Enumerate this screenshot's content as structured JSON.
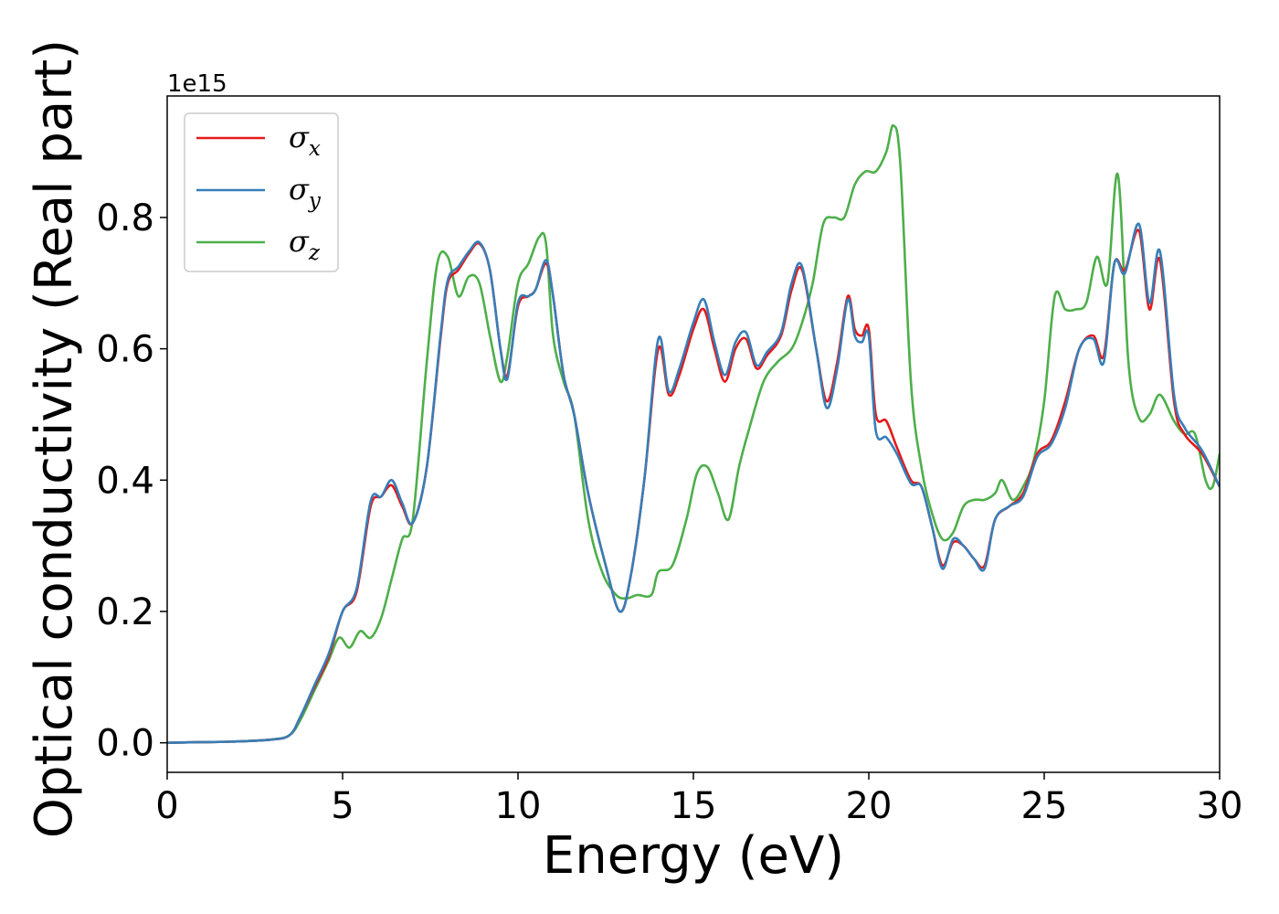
{
  "chart_data": {
    "type": "line",
    "xlabel": "Energy (eV)",
    "ylabel": "Optical conductivity (Real part)",
    "y_offset_text": "1e15",
    "xlim": [
      0,
      30
    ],
    "ylim": [
      -0.045,
      0.985
    ],
    "xticks": [
      0,
      5,
      10,
      15,
      20,
      25,
      30
    ],
    "xtick_labels": [
      "0",
      "5",
      "10",
      "15",
      "20",
      "25",
      "30"
    ],
    "yticks": [
      0.0,
      0.2,
      0.4,
      0.6,
      0.8
    ],
    "ytick_labels": [
      "0.0",
      "0.2",
      "0.4",
      "0.6",
      "0.8"
    ],
    "grid": false,
    "legend_position": "top-left",
    "series": [
      {
        "name": "σx",
        "symbol": "σ",
        "subscript": "x",
        "color": "#e41a1c",
        "x": [
          0,
          1,
          2,
          3,
          3.5,
          3.8,
          4.2,
          4.6,
          5.0,
          5.4,
          5.8,
          6.1,
          6.4,
          6.7,
          7.0,
          7.4,
          7.8,
          8.0,
          8.3,
          8.6,
          8.9,
          9.2,
          9.5,
          9.7,
          10.0,
          10.3,
          10.5,
          10.8,
          11.0,
          11.3,
          11.6,
          12.0,
          12.5,
          12.9,
          13.2,
          13.6,
          14.0,
          14.3,
          14.6,
          15.0,
          15.3,
          15.6,
          15.9,
          16.2,
          16.5,
          16.8,
          17.1,
          17.5,
          17.8,
          18.1,
          18.5,
          18.8,
          19.1,
          19.4,
          19.6,
          19.8,
          20.0,
          20.2,
          20.5,
          20.8,
          21.2,
          21.5,
          21.8,
          22.1,
          22.4,
          22.7,
          23.0,
          23.3,
          23.6,
          24.0,
          24.4,
          24.8,
          25.2,
          25.6,
          26.0,
          26.4,
          26.7,
          27.0,
          27.3,
          27.7,
          28.0,
          28.3,
          28.7,
          29.0,
          29.5,
          30.0
        ],
        "values": [
          0,
          0.001,
          0.002,
          0.005,
          0.012,
          0.04,
          0.085,
          0.13,
          0.2,
          0.23,
          0.36,
          0.375,
          0.392,
          0.36,
          0.335,
          0.42,
          0.62,
          0.7,
          0.72,
          0.745,
          0.76,
          0.72,
          0.6,
          0.56,
          0.665,
          0.68,
          0.69,
          0.73,
          0.68,
          0.56,
          0.5,
          0.38,
          0.27,
          0.2,
          0.25,
          0.4,
          0.6,
          0.53,
          0.56,
          0.63,
          0.66,
          0.6,
          0.55,
          0.6,
          0.615,
          0.57,
          0.59,
          0.62,
          0.69,
          0.72,
          0.6,
          0.52,
          0.58,
          0.68,
          0.63,
          0.62,
          0.63,
          0.5,
          0.49,
          0.45,
          0.4,
          0.39,
          0.33,
          0.27,
          0.305,
          0.3,
          0.28,
          0.27,
          0.34,
          0.36,
          0.38,
          0.44,
          0.46,
          0.52,
          0.6,
          0.62,
          0.59,
          0.73,
          0.72,
          0.78,
          0.66,
          0.735,
          0.52,
          0.47,
          0.44,
          0.39
        ]
      },
      {
        "name": "σy",
        "symbol": "σ",
        "subscript": "y",
        "color": "#377eb8",
        "x": [
          0,
          1,
          2,
          3,
          3.5,
          3.8,
          4.2,
          4.6,
          5.0,
          5.4,
          5.8,
          6.1,
          6.4,
          6.7,
          7.0,
          7.4,
          7.8,
          8.0,
          8.3,
          8.6,
          8.9,
          9.2,
          9.5,
          9.7,
          10.0,
          10.3,
          10.5,
          10.8,
          11.0,
          11.3,
          11.6,
          12.0,
          12.5,
          12.9,
          13.2,
          13.6,
          14.0,
          14.3,
          14.6,
          15.0,
          15.3,
          15.6,
          15.9,
          16.2,
          16.5,
          16.8,
          17.1,
          17.5,
          17.8,
          18.1,
          18.5,
          18.8,
          19.1,
          19.4,
          19.6,
          19.8,
          20.0,
          20.2,
          20.5,
          20.8,
          21.2,
          21.5,
          21.8,
          22.1,
          22.4,
          22.7,
          23.0,
          23.3,
          23.6,
          24.0,
          24.4,
          24.8,
          25.2,
          25.6,
          26.0,
          26.4,
          26.7,
          27.0,
          27.3,
          27.7,
          28.0,
          28.3,
          28.7,
          29.0,
          29.5,
          30.0
        ],
        "values": [
          0,
          0.001,
          0.002,
          0.005,
          0.012,
          0.04,
          0.088,
          0.135,
          0.2,
          0.235,
          0.368,
          0.375,
          0.4,
          0.365,
          0.335,
          0.42,
          0.625,
          0.705,
          0.725,
          0.748,
          0.762,
          0.72,
          0.6,
          0.555,
          0.67,
          0.68,
          0.69,
          0.735,
          0.68,
          0.56,
          0.5,
          0.38,
          0.27,
          0.2,
          0.25,
          0.4,
          0.615,
          0.535,
          0.57,
          0.64,
          0.675,
          0.61,
          0.56,
          0.61,
          0.625,
          0.575,
          0.595,
          0.625,
          0.7,
          0.725,
          0.6,
          0.51,
          0.57,
          0.675,
          0.62,
          0.61,
          0.62,
          0.475,
          0.465,
          0.44,
          0.395,
          0.39,
          0.33,
          0.265,
          0.31,
          0.3,
          0.28,
          0.265,
          0.34,
          0.36,
          0.375,
          0.435,
          0.455,
          0.51,
          0.6,
          0.615,
          0.58,
          0.73,
          0.715,
          0.79,
          0.67,
          0.748,
          0.53,
          0.48,
          0.445,
          0.39
        ]
      },
      {
        "name": "σz",
        "symbol": "σ",
        "subscript": "z",
        "color": "#4daf4a",
        "x": [
          0,
          1,
          2,
          3,
          3.5,
          3.8,
          4.2,
          4.6,
          4.9,
          5.2,
          5.5,
          5.8,
          6.1,
          6.4,
          6.7,
          7.0,
          7.4,
          7.7,
          8.0,
          8.3,
          8.6,
          8.9,
          9.2,
          9.5,
          9.7,
          10.0,
          10.3,
          10.6,
          10.8,
          11.0,
          11.3,
          11.6,
          12.0,
          12.4,
          12.8,
          13.1,
          13.4,
          13.8,
          14.0,
          14.4,
          14.8,
          15.1,
          15.4,
          15.7,
          16.0,
          16.3,
          16.6,
          17.0,
          17.4,
          17.8,
          18.1,
          18.4,
          18.7,
          19.0,
          19.3,
          19.6,
          19.9,
          20.2,
          20.5,
          20.7,
          20.9,
          21.2,
          21.5,
          21.8,
          22.1,
          22.4,
          22.7,
          23.0,
          23.3,
          23.6,
          23.8,
          24.1,
          24.4,
          24.7,
          25.0,
          25.3,
          25.6,
          25.9,
          26.2,
          26.5,
          26.8,
          27.1,
          27.4,
          27.7,
          28.0,
          28.3,
          28.7,
          29.0,
          29.3,
          29.6,
          29.8,
          30.0
        ],
        "values": [
          0,
          0.001,
          0.002,
          0.005,
          0.012,
          0.035,
          0.08,
          0.125,
          0.16,
          0.145,
          0.17,
          0.16,
          0.19,
          0.25,
          0.31,
          0.34,
          0.58,
          0.73,
          0.74,
          0.68,
          0.71,
          0.7,
          0.62,
          0.55,
          0.59,
          0.7,
          0.73,
          0.77,
          0.76,
          0.62,
          0.55,
          0.5,
          0.34,
          0.26,
          0.225,
          0.22,
          0.225,
          0.225,
          0.26,
          0.27,
          0.34,
          0.41,
          0.42,
          0.38,
          0.34,
          0.42,
          0.48,
          0.55,
          0.58,
          0.6,
          0.64,
          0.7,
          0.79,
          0.8,
          0.8,
          0.85,
          0.87,
          0.87,
          0.9,
          0.94,
          0.88,
          0.55,
          0.42,
          0.35,
          0.31,
          0.32,
          0.36,
          0.37,
          0.37,
          0.38,
          0.4,
          0.37,
          0.39,
          0.43,
          0.52,
          0.68,
          0.66,
          0.66,
          0.67,
          0.74,
          0.7,
          0.865,
          0.58,
          0.495,
          0.5,
          0.53,
          0.49,
          0.47,
          0.47,
          0.4,
          0.39,
          0.44
        ]
      }
    ]
  }
}
